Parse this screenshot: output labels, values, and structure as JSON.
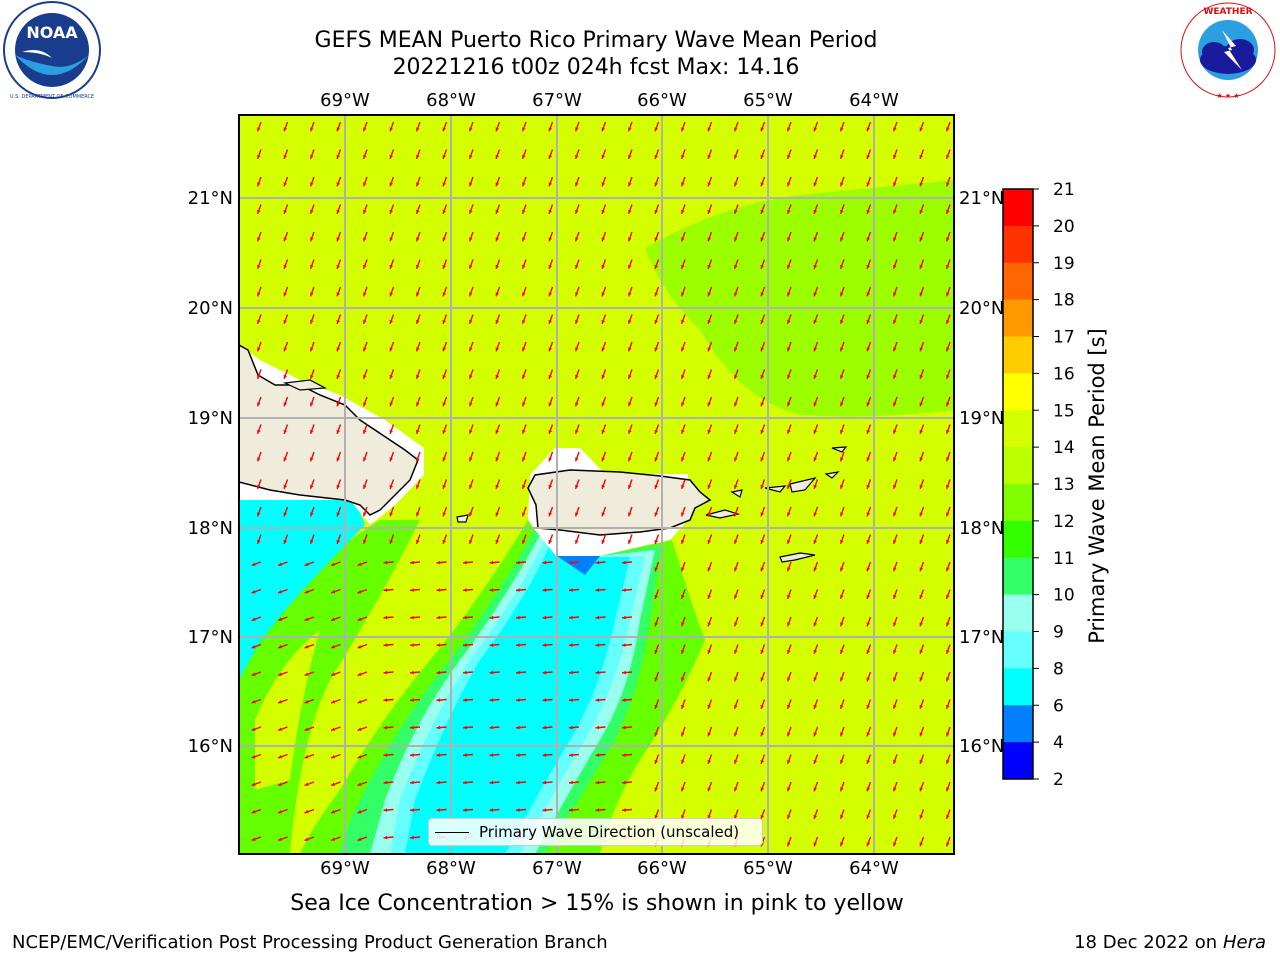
{
  "title": {
    "line1": "GEFS MEAN Puerto Rico Primary Wave Mean Period",
    "line2": "20221216 t00z 024h fcst   Max: 14.16"
  },
  "logos": {
    "left": {
      "name": "noaa-logo",
      "text": "NOAA",
      "ring_text": "NATIONAL OCEANIC AND ATMOSPHERIC ADMINISTRATION · U.S. DEPARTMENT OF COMMERCE"
    },
    "right": {
      "name": "nws-logo",
      "ring_text": "NATIONAL WEATHER SERVICE"
    }
  },
  "map": {
    "lon_labels": [
      "69°W",
      "68°W",
      "67°W",
      "66°W",
      "65°W",
      "64°W"
    ],
    "lat_labels": [
      "21°N",
      "20°N",
      "19°N",
      "18°N",
      "17°N",
      "16°N"
    ],
    "colors": {
      "background_field": "#d4ff00",
      "band_13": "#9cff00",
      "band_12": "#66ff00",
      "band_10": "#33ff66",
      "band_9": "#99ffee",
      "band_8": "#66ffff",
      "band_6": "#00ffff",
      "band_4": "#0080ff",
      "land": "#efecdc",
      "arrow": "#ff0000"
    }
  },
  "legend": {
    "label": "Primary Wave Direction (unscaled)"
  },
  "colorbar": {
    "label": "Primary Wave Mean Period [s]",
    "ticks": [
      "21",
      "20",
      "19",
      "18",
      "17",
      "16",
      "15",
      "14",
      "13",
      "12",
      "11",
      "10",
      "9",
      "8",
      "6",
      "4",
      "2"
    ],
    "colors": [
      "#ff0000",
      "#ff3300",
      "#ff6600",
      "#ff9900",
      "#ffcc00",
      "#ffff00",
      "#d4ff00",
      "#bbff00",
      "#80ff00",
      "#33ff00",
      "#33ff66",
      "#99ffee",
      "#66ffff",
      "#00ffff",
      "#0080ff",
      "#0000ff"
    ]
  },
  "caption": "Sea Ice Concentration > 15% is shown in pink to yellow",
  "footer": {
    "left": "NCEP/EMC/Verification Post Processing Product Generation Branch",
    "right_date": "18 Dec 2022 on",
    "right_host": "Hera"
  }
}
